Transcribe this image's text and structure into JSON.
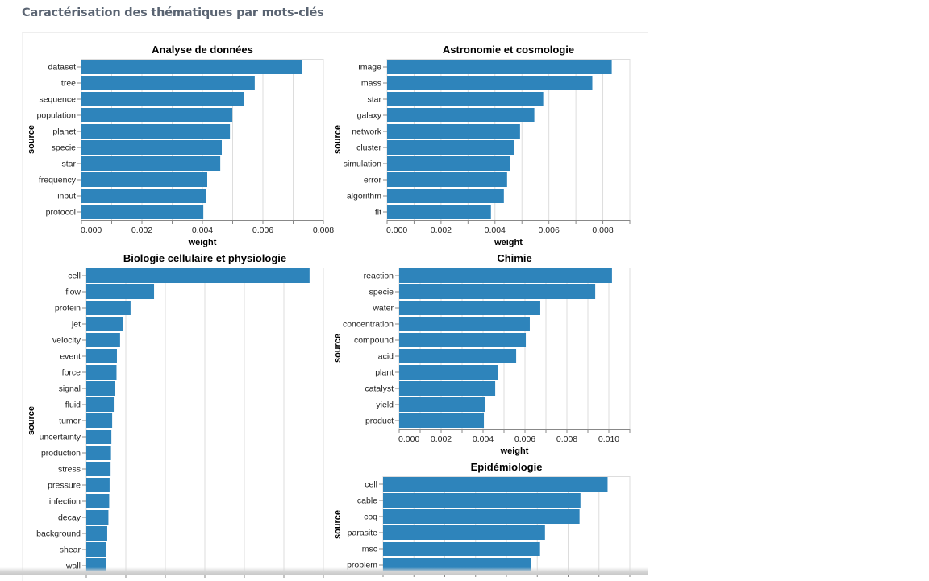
{
  "page": {
    "title": "Caractérisation des thématiques par mots-clés"
  },
  "colors": {
    "bar": "#2e84bb",
    "grid": "#dddddd",
    "axis": "#888888",
    "title_text": "#5a6472"
  },
  "chart_data": [
    {
      "type": "bar",
      "orientation": "horizontal",
      "title": "Analyse de données",
      "xlabel": "weight",
      "ylabel": "source",
      "xlim": [
        0,
        0.008
      ],
      "ticks": [
        "0.000",
        "0.002",
        "0.004",
        "0.006",
        "0.008"
      ],
      "grid": true,
      "categories": [
        "dataset",
        "tree",
        "sequence",
        "population",
        "planet",
        "specie",
        "star",
        "frequency",
        "input",
        "protocol"
      ],
      "values": [
        0.00728,
        0.00573,
        0.00536,
        0.00499,
        0.00491,
        0.00464,
        0.00459,
        0.00416,
        0.00413,
        0.00403
      ]
    },
    {
      "type": "bar",
      "orientation": "horizontal",
      "title": "Astronomie et cosmologie",
      "xlabel": "weight",
      "ylabel": "source",
      "xlim": [
        0,
        0.009
      ],
      "ticks": [
        "0.000",
        "0.002",
        "0.004",
        "0.006",
        "0.008"
      ],
      "grid": true,
      "categories": [
        "image",
        "mass",
        "star",
        "galaxy",
        "network",
        "cluster",
        "simulation",
        "error",
        "algorithm",
        "fit"
      ],
      "values": [
        0.00833,
        0.00761,
        0.00579,
        0.00546,
        0.00493,
        0.00472,
        0.00457,
        0.00445,
        0.00433,
        0.00385
      ]
    },
    {
      "type": "bar",
      "orientation": "horizontal",
      "title": "Biologie cellulaire et physiologie",
      "ylabel": "source",
      "xlim": [
        0,
        0.012
      ],
      "grid": true,
      "categories": [
        "cell",
        "flow",
        "protein",
        "jet",
        "velocity",
        "event",
        "force",
        "signal",
        "fluid",
        "tumor",
        "uncertainty",
        "production",
        "stress",
        "pressure",
        "infection",
        "decay",
        "background",
        "shear",
        "wall"
      ],
      "values": [
        0.0113,
        0.00343,
        0.00224,
        0.00184,
        0.00171,
        0.00155,
        0.00153,
        0.00143,
        0.00139,
        0.00131,
        0.00127,
        0.00125,
        0.00123,
        0.00118,
        0.00116,
        0.00112,
        0.00106,
        0.00102,
        0.00102
      ]
    },
    {
      "type": "bar",
      "orientation": "horizontal",
      "title": "Chimie",
      "xlabel": "weight",
      "ylabel": "source",
      "xlim": [
        0,
        0.011
      ],
      "ticks": [
        "0.000",
        "0.002",
        "0.004",
        "0.006",
        "0.008",
        "0.010"
      ],
      "grid": true,
      "categories": [
        "reaction",
        "specie",
        "water",
        "concentration",
        "compound",
        "acid",
        "plant",
        "catalyst",
        "yield",
        "product"
      ],
      "values": [
        0.01015,
        0.00935,
        0.00673,
        0.00623,
        0.00604,
        0.00558,
        0.00473,
        0.00458,
        0.00408,
        0.00404
      ]
    },
    {
      "type": "bar",
      "orientation": "horizontal",
      "title": "Epidémiologie",
      "ylabel": "source",
      "xlim": [
        0,
        0.008
      ],
      "grid": true,
      "categories": [
        "cell",
        "cable",
        "coq",
        "parasite",
        "msc",
        "problem"
      ],
      "values": [
        0.00728,
        0.0064,
        0.00637,
        0.00525,
        0.00509,
        0.0048
      ]
    }
  ]
}
